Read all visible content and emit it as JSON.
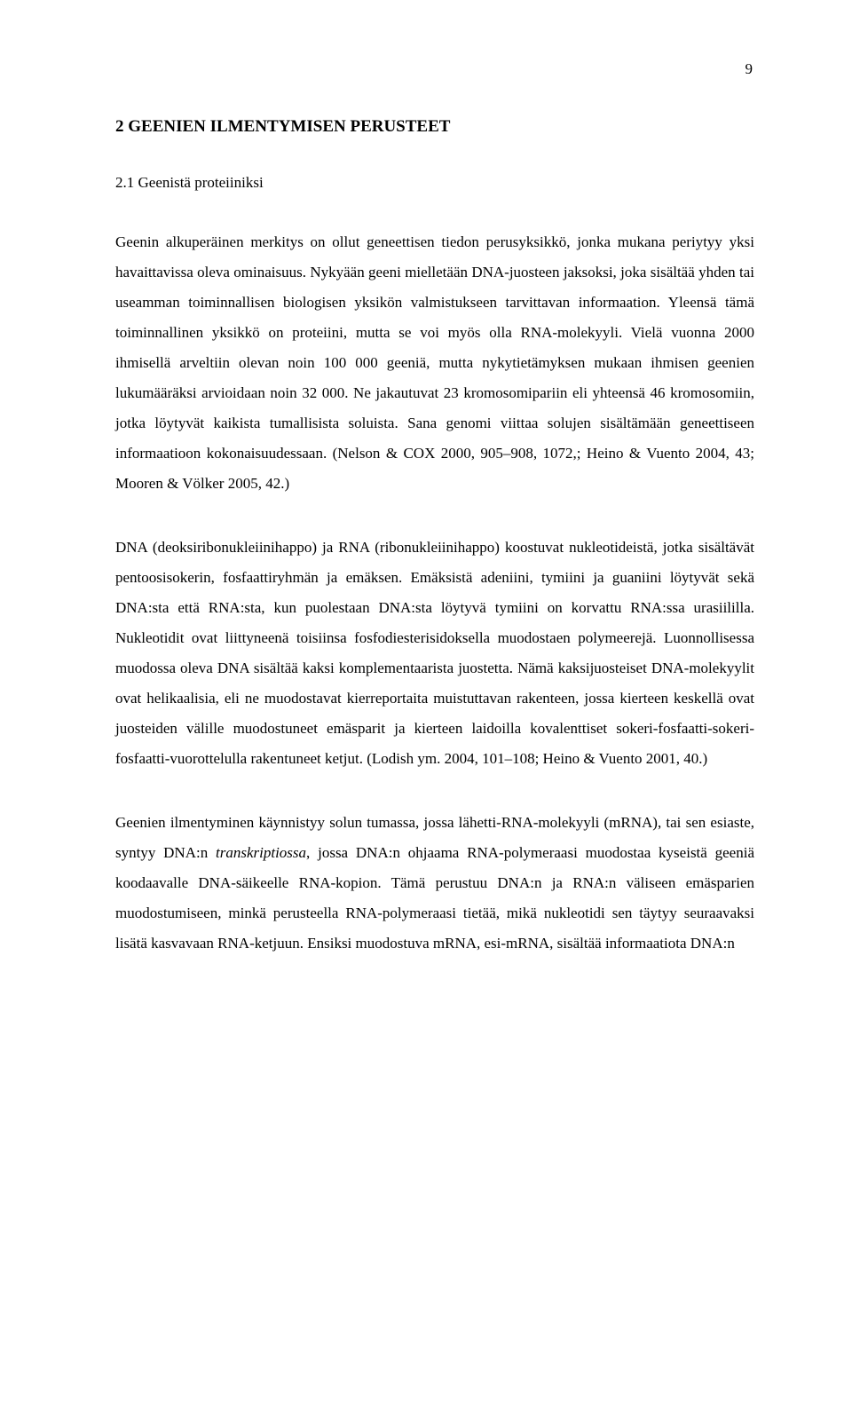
{
  "page_number": "9",
  "heading1": "2 GEENIEN ILMENTYMISEN PERUSTEET",
  "heading2": "2.1 Geenistä proteiiniksi",
  "p1": "Geenin alkuperäinen merkitys on ollut geneettisen tiedon perusyksikkö, jonka mukana periytyy yksi havaittavissa oleva ominaisuus. Nykyään geeni mielletään DNA-juosteen jaksoksi, joka sisältää yhden tai useamman toiminnallisen biologisen yksikön valmistukseen tarvittavan informaation. Yleensä tämä toiminnallinen yksikkö on proteiini, mutta se voi myös olla RNA-molekyyli. Vielä vuonna 2000 ihmisellä arveltiin olevan noin 100 000 geeniä, mutta nykytietämyksen mukaan ihmisen geenien lukumääräksi arvioidaan noin 32 000. Ne jakautuvat 23 kromosomipariin eli yhteensä 46 kromosomiin, jotka löytyvät kaikista tumallisista soluista. Sana genomi viittaa solujen sisältämään geneettiseen informaatioon kokonaisuudessaan. (Nelson & COX 2000, 905–908, 1072,; Heino & Vuento 2004, 43; Mooren & Völker 2005, 42.)",
  "p2": "DNA (deoksiribonukleiinihappo) ja RNA (ribonukleiinihappo) koostuvat nukleotideistä, jotka sisältävät pentoosisokerin, fosfaattiryhmän ja emäksen. Emäksistä adeniini, tymiini ja guaniini löytyvät sekä DNA:sta että RNA:sta, kun puolestaan DNA:sta löytyvä tymiini on korvattu RNA:ssa urasiililla. Nukleotidit ovat liittyneenä toisiinsa fosfodiesterisidoksella muodostaen polymeerejä. Luonnollisessa muodossa oleva DNA sisältää kaksi komplementaarista juostetta. Nämä kaksijuosteiset DNA-molekyylit ovat helikaalisia, eli ne muodostavat kierreportaita muistuttavan rakenteen, jossa kierteen keskellä ovat juosteiden välille muodostuneet emäsparit ja kierteen laidoilla kovalenttiset sokeri-fosfaatti-sokeri-fosfaatti-vuorottelulla rakentuneet ketjut.  (Lodish ym. 2004, 101–108; Heino & Vuento 2001, 40.)",
  "p3_a": "Geenien ilmentyminen käynnistyy solun tumassa, jossa lähetti-RNA-molekyyli (mRNA), tai sen esiaste, syntyy DNA:n ",
  "p3_italic": "transkriptiossa",
  "p3_b": ", jossa DNA:n ohjaama RNA-polymeraasi muodostaa kyseistä geeniä koodaavalle DNA-säikeelle RNA-kopion. Tämä perustuu DNA:n ja RNA:n väliseen emäsparien muodostumiseen, minkä perusteella RNA-polymeraasi tietää, mikä nukleotidi sen täytyy seuraavaksi lisätä kasvavaan RNA-ketjuun. Ensiksi muodostuva mRNA, esi-mRNA, sisältää informaatiota DNA:n"
}
